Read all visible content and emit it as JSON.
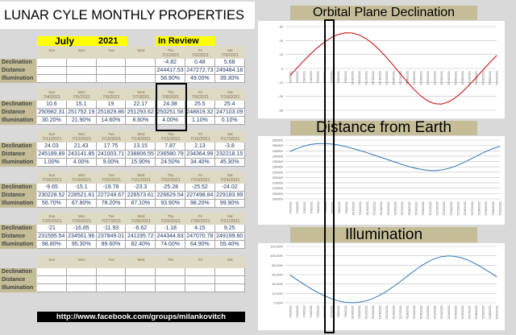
{
  "title": "LUNAR CYLE MONTHLY PROPERTIES",
  "header": {
    "month": "July",
    "year": "2021",
    "review": "In Review"
  },
  "row_labels": [
    "Declination",
    "Distance",
    "Illumination"
  ],
  "weeks": [
    {
      "days": [
        "Sun",
        "Mon",
        "Tue",
        "Wed",
        "Thu",
        "Fri",
        "Sat"
      ],
      "dates": [
        "",
        "",
        "",
        "",
        "7/1/2021",
        "7/2/2021",
        "7/3/2021"
      ],
      "declination": [
        "",
        "",
        "",
        "",
        "-4.82",
        "0.48",
        "5.68"
      ],
      "distance": [
        "",
        "",
        "",
        "",
        "244417.53",
        "247272.73",
        "249484.18"
      ],
      "illumination": [
        "",
        "",
        "",
        "",
        "58.90%",
        "49.00%",
        "39.30%"
      ]
    },
    {
      "days": [
        "Sun",
        "Mon",
        "Tue",
        "Wed",
        "Thu",
        "Fri",
        "Sat"
      ],
      "dates": [
        "7/4/2021",
        "7/5/2021",
        "7/6/2021",
        "7/7/2021",
        "7/8/2021",
        "7/9/2021",
        "7/10/2021"
      ],
      "declination": [
        "10.6",
        "15.1",
        "19",
        "22.17",
        "24.38",
        "25.5",
        "25.4"
      ],
      "distance": [
        "250982.31",
        "251752.19",
        "251829.86",
        "251293.62",
        "250251.58",
        "248819.32",
        "247103.09"
      ],
      "illumination": [
        "30.20%",
        "21.90%",
        "14.60%",
        "8.60%",
        "4.00%",
        "1.10%",
        "0.10%"
      ]
    },
    {
      "days": [
        "Sun",
        "Mon",
        "Tue",
        "Wed",
        "Thu",
        "Fri",
        "Sat"
      ],
      "dates": [
        "7/11/2021",
        "7/12/2021",
        "7/13/2021",
        "7/14/2021",
        "7/15/2021",
        "7/16/2021",
        "7/17/2021"
      ],
      "declination": [
        "24.03",
        "21.43",
        "17.75",
        "13.15",
        "7.87",
        "2.13",
        "-3.8"
      ],
      "distance": [
        "245189.89",
        "243141.85",
        "241003.71",
        "238806.55",
        "236580.79",
        "234364.99",
        "232218.15"
      ],
      "illumination": [
        "1.00%",
        "4.00%",
        "9.00%",
        "15.90%",
        "24.50%",
        "34.40%",
        "45.30%"
      ]
    },
    {
      "days": [
        "Sun",
        "Mon",
        "Tue",
        "Wed",
        "Thu",
        "Fri",
        "Sat"
      ],
      "dates": [
        "7/18/2021",
        "7/19/2021",
        "7/20/2021",
        "7/21/2021",
        "7/22/2021",
        "7/23/2021",
        "7/24/2021"
      ],
      "declination": [
        "-9.65",
        "-15.1",
        "-19.78",
        "-23.3",
        "-25.28",
        "-25.52",
        "-24.02"
      ],
      "distance": [
        "230228.52",
        "228521.61",
        "227249.67",
        "226573.61",
        "226629.54",
        "227498.84",
        "229183.99"
      ],
      "illumination": [
        "56.70%",
        "67.80%",
        "78.20%",
        "87.10%",
        "93.90%",
        "98.20%",
        "99.90%"
      ]
    },
    {
      "days": [
        "Sun",
        "Mon",
        "Tue",
        "Wed",
        "Thu",
        "Fri",
        "Sat"
      ],
      "dates": [
        "7/25/2021",
        "7/26/2021",
        "7/27/2021",
        "7/28/2021",
        "7/29/2021",
        "7/30/2021",
        "7/31/2021"
      ],
      "declination": [
        "-21",
        "-16.85",
        "-11.93",
        "-6.62",
        "-1.18",
        "4.15",
        "9.25"
      ],
      "distance": [
        "231595.54",
        "234561.96",
        "237849.01",
        "241195.72",
        "244344.83",
        "247070.78",
        "249199.60"
      ],
      "illumination": [
        "98.80%",
        "95.30%",
        "89.60%",
        "82.40%",
        "74.00%",
        "64.90%",
        "55.40%"
      ]
    },
    {
      "days": [
        "Sun",
        "Mon",
        "Tue",
        "Wed",
        "Thu",
        "Fri",
        "Sat"
      ],
      "dates": [
        "",
        "",
        "",
        "",
        "",
        "",
        ""
      ],
      "declination": [
        "",
        "",
        "",
        "",
        "",
        "",
        ""
      ],
      "distance": [
        "",
        "",
        "",
        "",
        "",
        "",
        ""
      ],
      "illumination": [
        "",
        "",
        "",
        "",
        "",
        "",
        ""
      ]
    }
  ],
  "link": "http://www.facebook.com/groups/milankovitch",
  "chart_data": [
    {
      "type": "line",
      "title": "Orbital Plane Declination",
      "color": "#c00000",
      "ylim": [
        -30,
        30
      ],
      "yticks": [
        30,
        20,
        10,
        0,
        -10,
        -20,
        -30
      ],
      "grid": true,
      "tick_format": "int",
      "values": [
        -4.82,
        0.48,
        5.68,
        10.6,
        15.1,
        19,
        22.17,
        24.38,
        25.5,
        25.4,
        24.03,
        21.43,
        17.75,
        13.15,
        7.87,
        2.13,
        -3.8,
        -9.65,
        -15.1,
        -19.78,
        -23.3,
        -25.28,
        -25.52,
        -24.02,
        -21,
        -16.85,
        -11.93,
        -6.62,
        -1.18,
        4.15,
        9.25
      ]
    },
    {
      "type": "line",
      "title": "Distance from Earth",
      "color": "#2e75b6",
      "ylim": [
        200000,
        255000
      ],
      "yticks": [
        255000,
        250000,
        245000,
        240000,
        235000,
        230000,
        225000,
        220000,
        215000,
        210000,
        205000,
        200000
      ],
      "grid": true,
      "tick_format": "int",
      "values": [
        244417.53,
        247272.73,
        249484.18,
        250982.31,
        251752.19,
        251829.86,
        251293.62,
        250251.58,
        248819.32,
        247103.09,
        245189.89,
        243141.85,
        241003.71,
        238806.55,
        236580.79,
        234364.99,
        232218.15,
        230228.52,
        228521.61,
        227249.67,
        226573.61,
        226629.54,
        227498.84,
        229183.99,
        231595.54,
        234561.96,
        237849.01,
        241195.72,
        244344.83,
        247070.78,
        249199.6
      ]
    },
    {
      "type": "line",
      "title": "Illumination",
      "color": "#2e75b6",
      "ylim": [
        0,
        120
      ],
      "yticks": [
        120,
        100,
        80,
        60,
        40,
        20,
        0
      ],
      "grid": true,
      "tick_format": "pct",
      "values": [
        58.9,
        49,
        39.3,
        30.2,
        21.9,
        14.6,
        8.6,
        4,
        1.1,
        0.1,
        1,
        4,
        9,
        15.9,
        24.5,
        34.4,
        45.3,
        56.7,
        67.8,
        78.2,
        87.1,
        93.9,
        98.2,
        99.9,
        98.8,
        95.3,
        89.6,
        82.4,
        74,
        64.9,
        55.4
      ]
    }
  ],
  "x_labels": [
    "7/1/2021",
    "7/2/2021",
    "7/3/2021",
    "7/4/2021",
    "7/5/2021",
    "7/6/2021",
    "7/7/2021",
    "7/8/2021",
    "7/9/2021",
    "7/10/2021",
    "7/11/2021",
    "7/12/2021",
    "7/13/2021",
    "7/14/2021",
    "7/15/2021",
    "7/16/2021",
    "7/17/2021",
    "7/18/2021",
    "7/19/2021",
    "7/20/2021",
    "7/21/2021",
    "7/22/2021",
    "7/23/2021",
    "7/24/2021",
    "7/25/2021",
    "7/26/2021",
    "7/27/2021",
    "7/28/2021",
    "7/29/2021",
    "7/30/2021",
    "7/31/2021"
  ]
}
